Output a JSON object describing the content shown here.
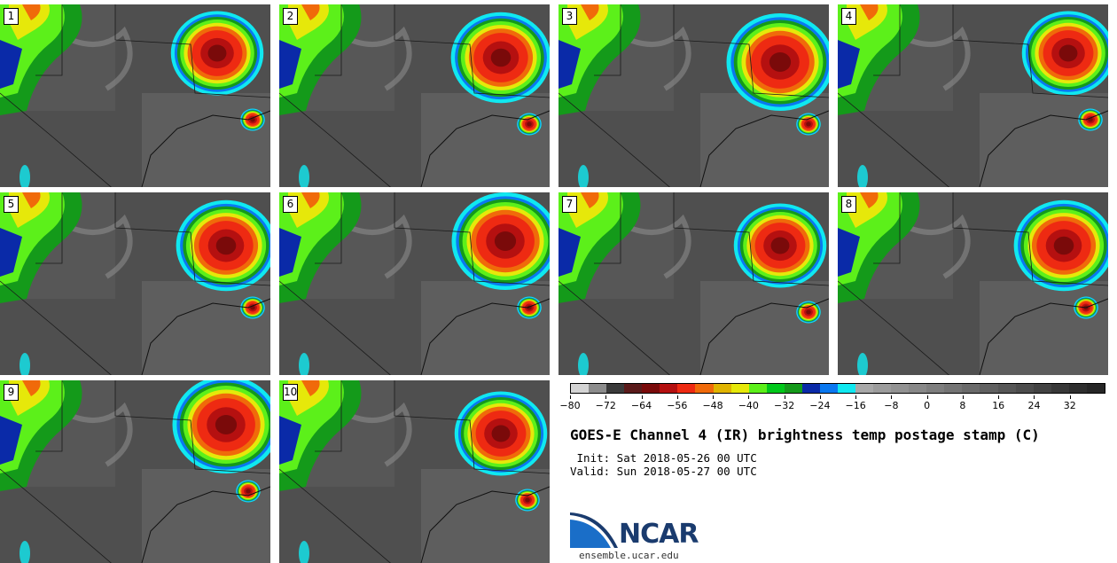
{
  "panels": [
    {
      "label": "1"
    },
    {
      "label": "2"
    },
    {
      "label": "3"
    },
    {
      "label": "4"
    },
    {
      "label": "5"
    },
    {
      "label": "6"
    },
    {
      "label": "7"
    },
    {
      "label": "8"
    },
    {
      "label": "9"
    },
    {
      "label": "10"
    }
  ],
  "colorbar": {
    "min": -80,
    "max": 40,
    "colors": [
      "#d4d4d4",
      "#8c8c8c",
      "#3a3a3a",
      "#5a1a1a",
      "#7a0a0a",
      "#b51010",
      "#ee2a12",
      "#f06a0a",
      "#e0b400",
      "#e6e80a",
      "#5cf01a",
      "#00c81a",
      "#149a1a",
      "#0a2aa8",
      "#0a78f0",
      "#10e8f0",
      "#a8a8a8",
      "#9c9c9c",
      "#929292",
      "#888888",
      "#7e7e7e",
      "#747474",
      "#6a6a6a",
      "#606060",
      "#565656",
      "#4c4c4c",
      "#424242",
      "#383838",
      "#2e2e2e",
      "#262626"
    ],
    "ticks": [
      "−80",
      "−72",
      "−64",
      "−56",
      "−48",
      "−40",
      "−32",
      "−24",
      "−16",
      "−8",
      "0",
      "8",
      "16",
      "24",
      "32"
    ],
    "tick_values": [
      -80,
      -72,
      -64,
      -56,
      -48,
      -40,
      -32,
      -24,
      -16,
      -8,
      0,
      8,
      16,
      24,
      32
    ]
  },
  "title": "GOES-E Channel 4 (IR) brightness temp postage stamp (C)",
  "init": " Init: Sat 2018-05-26 00 UTC",
  "valid": "Valid: Sun 2018-05-27 00 UTC",
  "logo": {
    "text": "NCAR",
    "color": "#1a3b6e"
  },
  "site": "ensemble.ucar.edu"
}
